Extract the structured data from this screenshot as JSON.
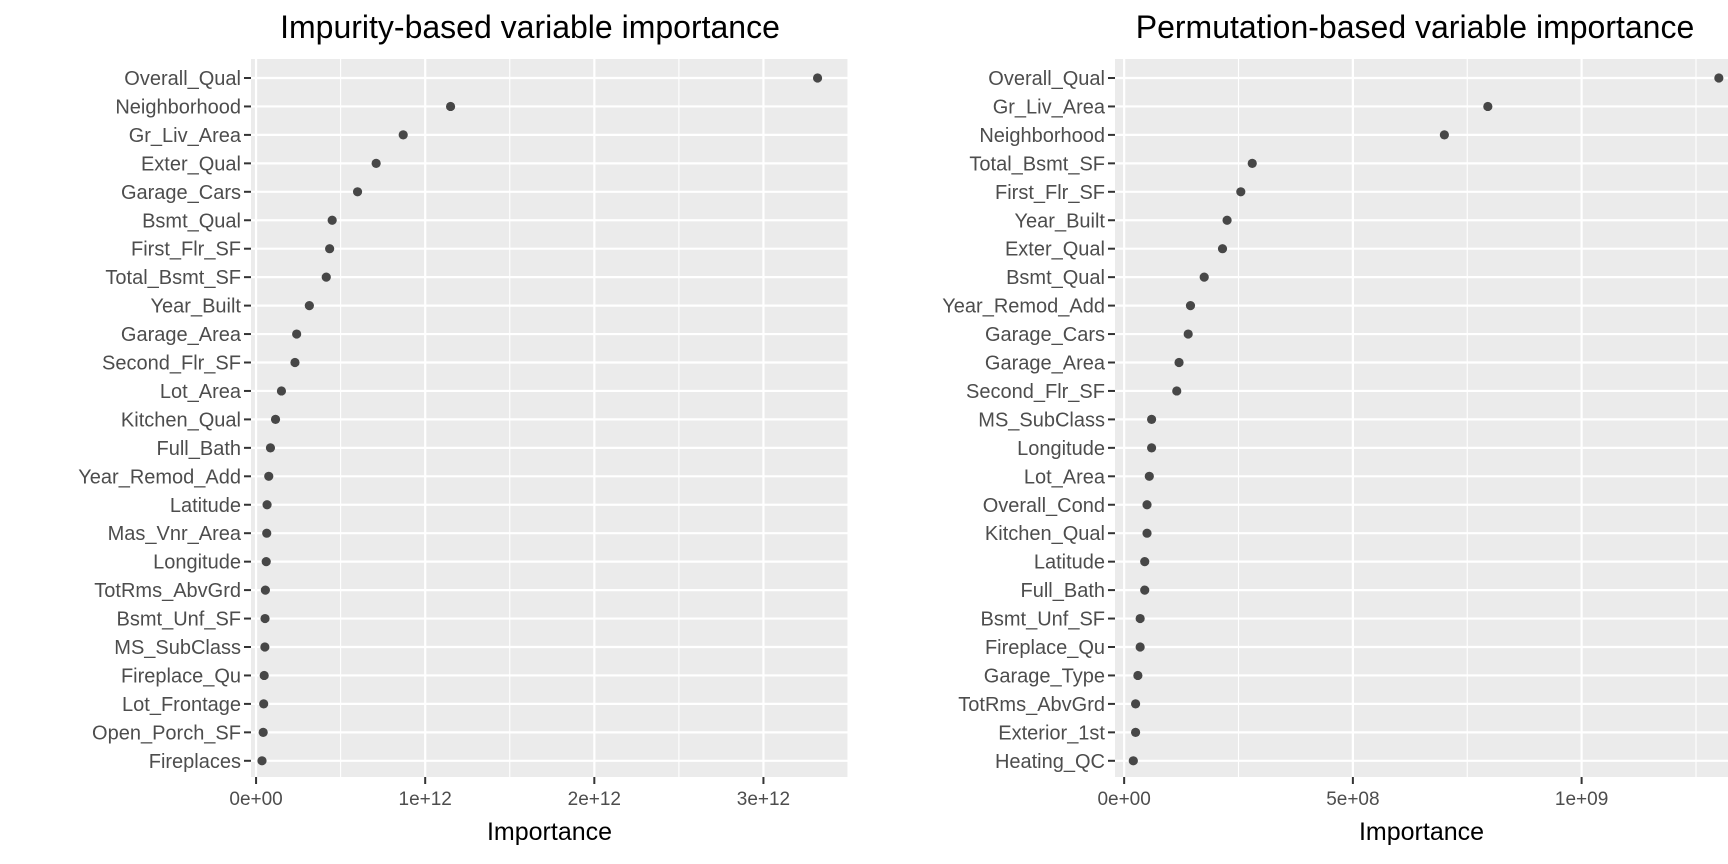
{
  "chart_data": [
    {
      "type": "scatter",
      "title": "Impurity-based variable importance",
      "xlabel": "Importance",
      "ylabel": "",
      "xlim": [
        -30000000000.0,
        3500000000000.0
      ],
      "xticks": [
        0,
        1000000000000.0,
        2000000000000.0,
        3000000000000.0
      ],
      "xtick_labels": [
        "0e+00",
        "1e+12",
        "2e+12",
        "3e+12"
      ],
      "grid": true,
      "categories": [
        "Overall_Qual",
        "Neighborhood",
        "Gr_Liv_Area",
        "Exter_Qual",
        "Garage_Cars",
        "Bsmt_Qual",
        "First_Flr_SF",
        "Total_Bsmt_SF",
        "Year_Built",
        "Garage_Area",
        "Second_Flr_SF",
        "Lot_Area",
        "Kitchen_Qual",
        "Full_Bath",
        "Year_Remod_Add",
        "Latitude",
        "Mas_Vnr_Area",
        "Longitude",
        "TotRms_AbvGrd",
        "Bsmt_Unf_SF",
        "MS_SubClass",
        "Fireplace_Qu",
        "Lot_Frontage",
        "Open_Porch_SF",
        "Fireplaces"
      ],
      "values": [
        3320000000000.0,
        1150000000000.0,
        870000000000.0,
        710000000000.0,
        600000000000.0,
        450000000000.0,
        435000000000.0,
        415000000000.0,
        315000000000.0,
        240000000000.0,
        230000000000.0,
        150000000000.0,
        115000000000.0,
        85000000000.0,
        75000000000.0,
        65000000000.0,
        63000000000.0,
        60000000000.0,
        55000000000.0,
        53000000000.0,
        52000000000.0,
        48000000000.0,
        45000000000.0,
        42000000000.0,
        35000000000.0
      ]
    },
    {
      "type": "scatter",
      "title": "Permutation-based variable importance",
      "xlabel": "Importance",
      "ylabel": "",
      "xlim": [
        -20000000.0,
        1320000000.0
      ],
      "xticks": [
        0,
        500000000.0,
        1000000000.0
      ],
      "xtick_labels": [
        "0e+00",
        "5e+08",
        "1e+09"
      ],
      "grid": true,
      "categories": [
        "Overall_Qual",
        "Gr_Liv_Area",
        "Neighborhood",
        "Total_Bsmt_SF",
        "First_Flr_SF",
        "Year_Built",
        "Exter_Qual",
        "Bsmt_Qual",
        "Year_Remod_Add",
        "Garage_Cars",
        "Garage_Area",
        "Second_Flr_SF",
        "MS_SubClass",
        "Longitude",
        "Lot_Area",
        "Overall_Cond",
        "Kitchen_Qual",
        "Latitude",
        "Full_Bath",
        "Bsmt_Unf_SF",
        "Fireplace_Qu",
        "Garage_Type",
        "TotRms_AbvGrd",
        "Exterior_1st",
        "Heating_QC"
      ],
      "values": [
        1300000000.0,
        795000000.0,
        700000000.0,
        280000000.0,
        255000000.0,
        225000000.0,
        215000000.0,
        175000000.0,
        145000000.0,
        140000000.0,
        120000000.0,
        115000000.0,
        60000000.0,
        60000000.0,
        55000000.0,
        50000000.0,
        50000000.0,
        45000000.0,
        45000000.0,
        35000000.0,
        35000000.0,
        30000000.0,
        25000000.0,
        25000000.0,
        20000000.0
      ]
    }
  ],
  "colors": {
    "panel_background": "#EBEBEB",
    "grid": "#FFFFFF",
    "point": "#474747",
    "text": "#4D4D4D"
  }
}
